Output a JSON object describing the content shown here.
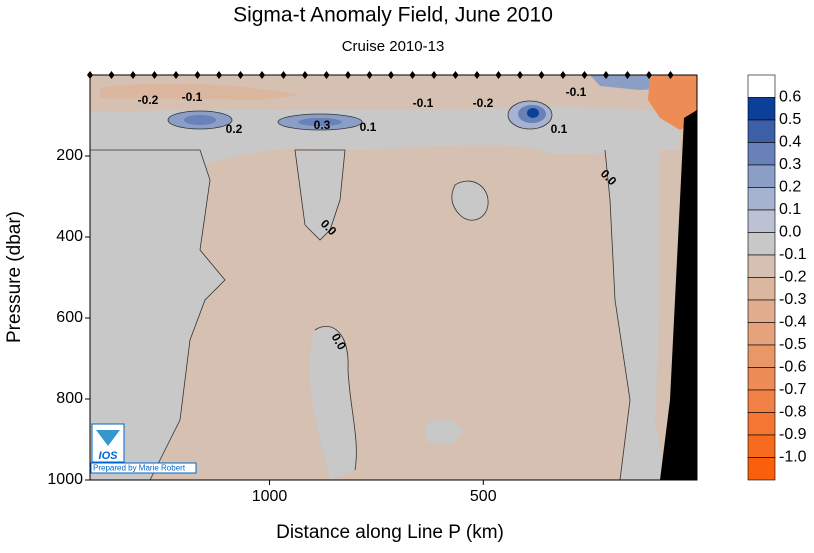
{
  "chart_data": {
    "type": "contour",
    "title": "Sigma-t Anomaly Field,  June 2010",
    "subtitle": "Cruise 2010-13",
    "x_label": "Distance along Line P  (km)",
    "y_label": "Pressure  (dbar)",
    "xlim": [
      1420,
      0
    ],
    "xticks": [
      1000,
      500
    ],
    "ylim": [
      0,
      1000
    ],
    "yticks": [
      200,
      400,
      600,
      800,
      1000
    ],
    "y_inverted": true,
    "colorbar": {
      "levels": [
        0.6,
        0.5,
        0.4,
        0.3,
        0.2,
        0.1,
        0.0,
        -0.1,
        -0.2,
        -0.3,
        -0.4,
        -0.5,
        -0.6,
        -0.7,
        -0.8,
        -0.9,
        -1.0
      ],
      "level_labels": [
        "0.6",
        "0.5",
        "0.4",
        "0.3",
        "0.2",
        "0.1",
        "0.0",
        "-0.1",
        "-0.2",
        "-0.3",
        "-0.4",
        "-0.5",
        "-0.6",
        "-0.7",
        "-0.8",
        "-0.9",
        "-1.0"
      ],
      "colors": [
        "#0b3f98",
        "#3c5fa8",
        "#6881b8",
        "#8b9fc6",
        "#a6b3d0",
        "#bcc2d4",
        "#c8c8c8",
        "#d5c0b1",
        "#dbb7a0",
        "#e0ad8e",
        "#e5a27b",
        "#ea9768",
        "#ee8c56",
        "#f18144",
        "#f47632",
        "#f76b1f",
        "#fa600c"
      ],
      "top_color": "#ffffff"
    },
    "contour_labels": [
      "-0.2",
      "-0.1",
      "0.2",
      "0.3",
      "0.1",
      "-0.1",
      "-0.2",
      "-0.1",
      "0.1",
      "0.0",
      "0.0",
      "0.0"
    ],
    "logo_text": "IOS",
    "credit": "Prepared by Marie Robert"
  }
}
